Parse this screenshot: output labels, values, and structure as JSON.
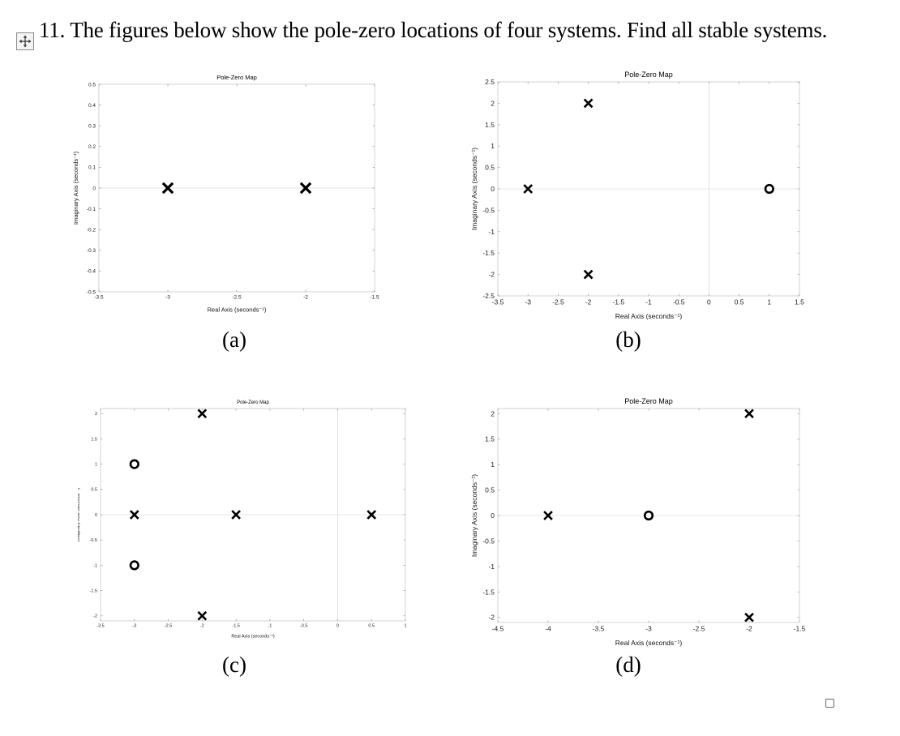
{
  "question": {
    "text": "11. The figures below show the pole-zero locations of four systems. Find all stable systems."
  },
  "icons": {
    "move_handle": "move-arrows-icon",
    "corner_box": "checkbox-square-icon"
  },
  "chart_data": [
    {
      "id": "a",
      "type": "scatter",
      "caption": "(a)",
      "title": "Pole-Zero Map",
      "xlabel": "Real Axis (seconds⁻¹)",
      "ylabel": "Imaginary Axis (seconds⁻¹)",
      "xlim": [
        -3.5,
        -1.5
      ],
      "ylim": [
        -0.5,
        0.5
      ],
      "xticks": [
        -3.5,
        -3,
        -2.5,
        -2,
        -1.5
      ],
      "xtick_labels": [
        "-3.5",
        "-3",
        "-2.5",
        "-2",
        "-1.5"
      ],
      "yticks": [
        -0.5,
        -0.4,
        -0.3,
        -0.2,
        -0.1,
        0,
        0.1,
        0.2,
        0.3,
        0.4,
        0.5
      ],
      "ytick_labels": [
        "-0.5",
        "-0.4",
        "-0.3",
        "-0.2",
        "-0.1",
        "0",
        "0.1",
        "0.2",
        "0.3",
        "0.4",
        "0.5"
      ],
      "grid": false,
      "poles": [
        [
          -3,
          0
        ],
        [
          -2,
          0
        ]
      ],
      "zeros": []
    },
    {
      "id": "b",
      "type": "scatter",
      "caption": "(b)",
      "title": "Pole-Zero Map",
      "xlabel": "Real Axis (seconds⁻¹)",
      "ylabel": "Imaginary Axis (seconds⁻¹)",
      "xlim": [
        -3.5,
        1.5
      ],
      "ylim": [
        -2.5,
        2.5
      ],
      "xticks": [
        -3.5,
        -3,
        -2.5,
        -2,
        -1.5,
        -1,
        -0.5,
        0,
        0.5,
        1,
        1.5
      ],
      "xtick_labels": [
        "-3.5",
        "-3",
        "-2.5",
        "-2",
        "-1.5",
        "-1",
        "-0.5",
        "0",
        "0.5",
        "1",
        "1.5"
      ],
      "yticks": [
        -2.5,
        -2,
        -1.5,
        -1,
        -0.5,
        0,
        0.5,
        1,
        1.5,
        2,
        2.5
      ],
      "ytick_labels": [
        "-2.5",
        "-2",
        "-1.5",
        "-1",
        "-0.5",
        "0",
        "0.5",
        "1",
        "1.5",
        "2",
        "2.5"
      ],
      "grid": false,
      "poles": [
        [
          -3,
          0
        ],
        [
          -2,
          2
        ],
        [
          -2,
          -2
        ]
      ],
      "zeros": [
        [
          1,
          0
        ]
      ]
    },
    {
      "id": "c",
      "type": "scatter",
      "caption": "(c)",
      "title": "Pole-Zero Map",
      "xlabel": "Real Axis (seconds⁻¹)",
      "ylabel": "Imaginary Axis (seconds⁻¹)",
      "xlim": [
        -3.5,
        1
      ],
      "ylim": [
        -2.1,
        2.1
      ],
      "xticks": [
        -3.5,
        -3,
        -2.5,
        -2,
        -1.5,
        -1,
        -0.5,
        0,
        0.5,
        1
      ],
      "xtick_labels": [
        "-3.5",
        "-3",
        "-2.5",
        "-2",
        "-1.5",
        "-1",
        "-0.5",
        "0",
        "0.5",
        "1"
      ],
      "yticks": [
        -2,
        -1.5,
        -1,
        -0.5,
        0,
        0.5,
        1,
        1.5,
        2
      ],
      "ytick_labels": [
        "-2",
        "-1.5",
        "-1",
        "-0.5",
        "0",
        "0.5",
        "1",
        "1.5",
        "2"
      ],
      "grid": false,
      "poles": [
        [
          -3,
          0
        ],
        [
          -1.5,
          0
        ],
        [
          0.5,
          0
        ],
        [
          -2,
          2
        ],
        [
          -2,
          -2
        ]
      ],
      "zeros": [
        [
          -3,
          1
        ],
        [
          -3,
          -1
        ]
      ]
    },
    {
      "id": "d",
      "type": "scatter",
      "caption": "(d)",
      "title": "Pole-Zero Map",
      "xlabel": "Real Axis (seconds⁻¹)",
      "ylabel": "Imaginary Axis (seconds⁻¹)",
      "xlim": [
        -4.5,
        -1.5
      ],
      "ylim": [
        -2.1,
        2.1
      ],
      "xticks": [
        -4.5,
        -4,
        -3.5,
        -3,
        -2.5,
        -2,
        -1.5
      ],
      "xtick_labels": [
        "-4.5",
        "-4",
        "-3.5",
        "-3",
        "-2.5",
        "-2",
        "-1.5"
      ],
      "yticks": [
        -2,
        -1.5,
        -1,
        -0.5,
        0,
        0.5,
        1,
        1.5,
        2
      ],
      "ytick_labels": [
        "-2",
        "-1.5",
        "-1",
        "-0.5",
        "0",
        "0.5",
        "1",
        "1.5",
        "2"
      ],
      "grid": false,
      "poles": [
        [
          -4,
          0
        ],
        [
          -2,
          2
        ],
        [
          -2,
          -2
        ]
      ],
      "zeros": [
        [
          -3,
          0
        ]
      ]
    }
  ]
}
